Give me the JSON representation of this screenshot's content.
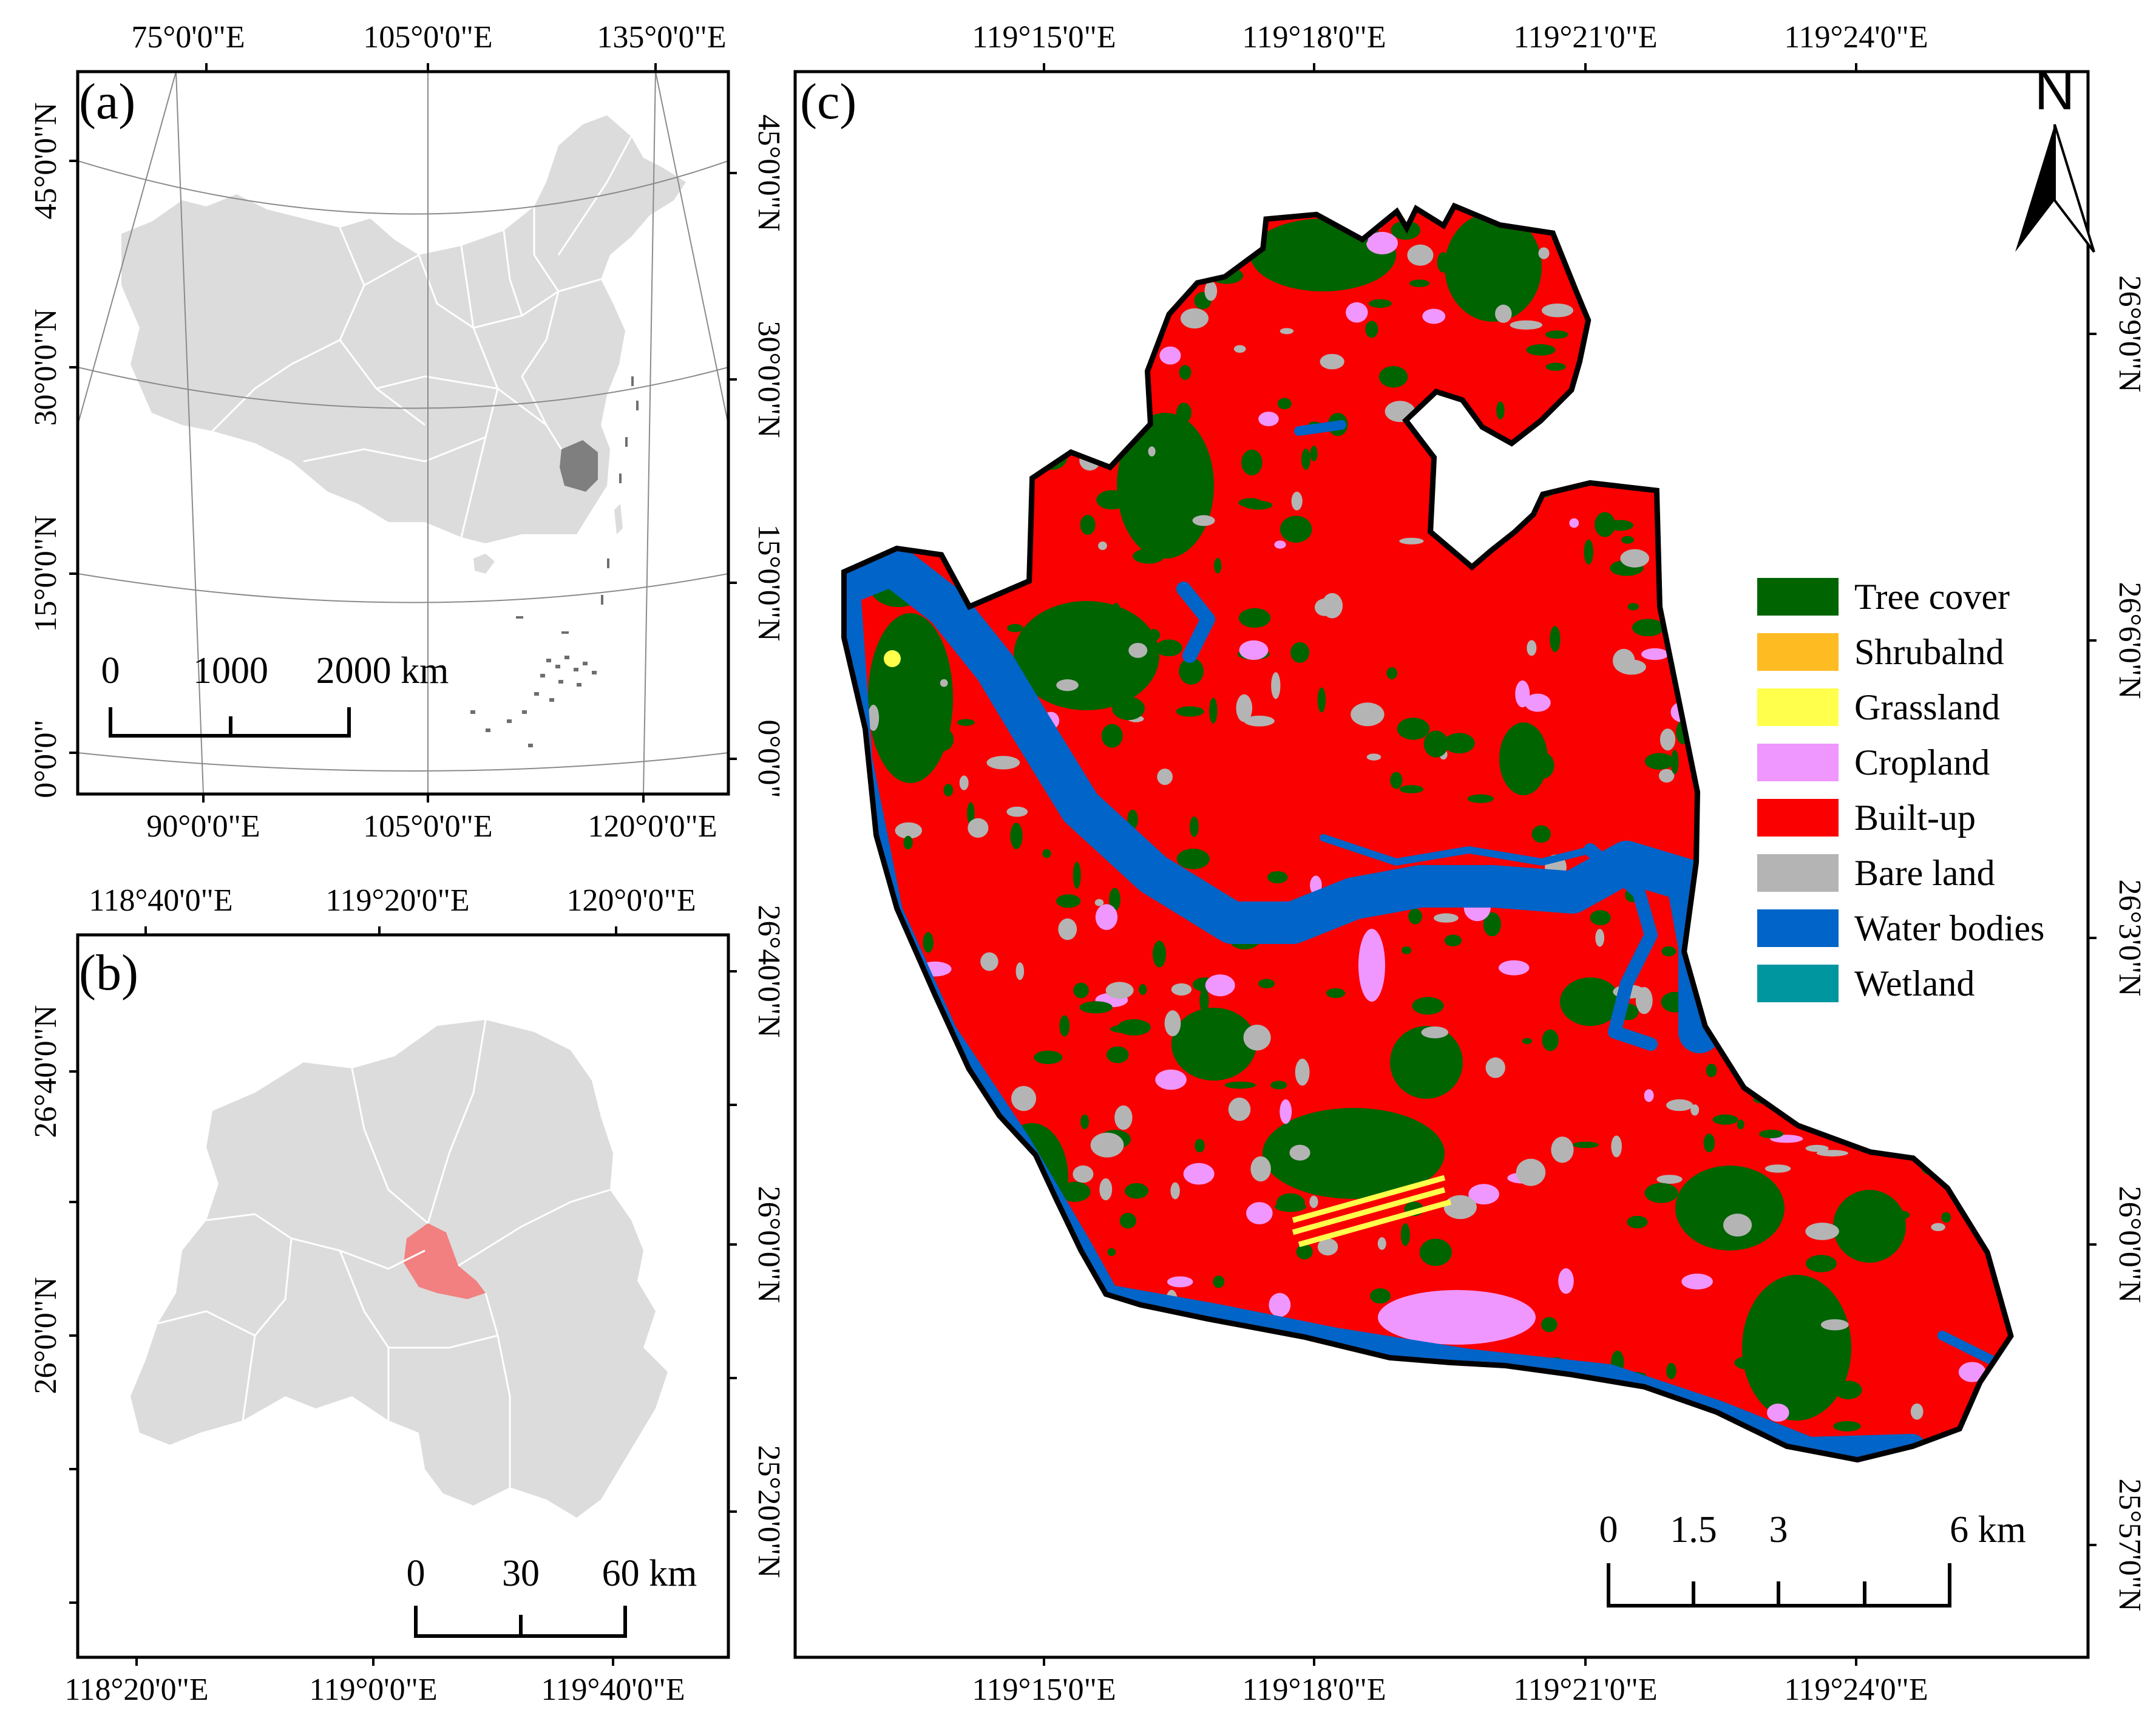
{
  "panels": {
    "a": {
      "label": "(a)",
      "top_ticks": [
        "75°0'0\"E",
        "105°0'0\"E",
        "135°0'0\"E"
      ],
      "bottom_ticks": [
        "90°0'0\"E",
        "105°0'0\"E",
        "120°0'0\"E"
      ],
      "left_ticks": [
        "45°0'0\"N",
        "30°0'0\"N",
        "15°0'0\"N",
        "0°0'0\""
      ],
      "right_ticks": [
        "45°0'0\"N",
        "30°0'0\"N",
        "15°0'0\"N",
        "0°0'0\""
      ],
      "scale": {
        "labels": [
          "0",
          "1000",
          "2000 km"
        ]
      },
      "colors": {
        "land": "#dcdcdc",
        "highlight": "#7f7f7f",
        "grid": "#8a8a8a"
      }
    },
    "b": {
      "label": "(b)",
      "top_ticks": [
        "118°40'0\"E",
        "119°20'0\"E",
        "120°0'0\"E"
      ],
      "bottom_ticks": [
        "118°20'0\"E",
        "119°0'0\"E",
        "119°40'0\"E"
      ],
      "left_ticks": [
        "26°40'0\"N",
        "26°0'0\"N"
      ],
      "right_ticks": [
        "26°40'0\"N",
        "26°0'0\"N",
        "25°20'0\"N"
      ],
      "scale": {
        "labels": [
          "0",
          "30",
          "60 km"
        ]
      },
      "colors": {
        "land": "#dcdcdc",
        "highlight": "#f28080"
      }
    },
    "c": {
      "label": "(c)",
      "top_ticks": [
        "119°15'0\"E",
        "119°18'0\"E",
        "119°21'0\"E",
        "119°24'0\"E"
      ],
      "bottom_ticks": [
        "119°15'0\"E",
        "119°18'0\"E",
        "119°21'0\"E",
        "119°24'0\"E"
      ],
      "right_ticks": [
        "26°9'0\"N",
        "26°6'0\"N",
        "26°3'0\"N",
        "26°0'0\"N",
        "25°57'0\"N"
      ],
      "north_label": "N",
      "scale": {
        "labels": [
          "0",
          "1.5",
          "3",
          "6 km"
        ]
      },
      "legend": [
        {
          "label": "Tree cover",
          "color": "#006400"
        },
        {
          "label": "Shrubalnd",
          "color": "#ffbb22"
        },
        {
          "label": "Grassland",
          "color": "#ffff4c"
        },
        {
          "label": "Cropland",
          "color": "#f096ff"
        },
        {
          "label": "Built-up",
          "color": "#fa0000"
        },
        {
          "label": "Bare land",
          "color": "#b4b4b4"
        },
        {
          "label": "Water bodies",
          "color": "#0064c8"
        },
        {
          "label": "Wetland",
          "color": "#0096a0"
        }
      ]
    }
  }
}
